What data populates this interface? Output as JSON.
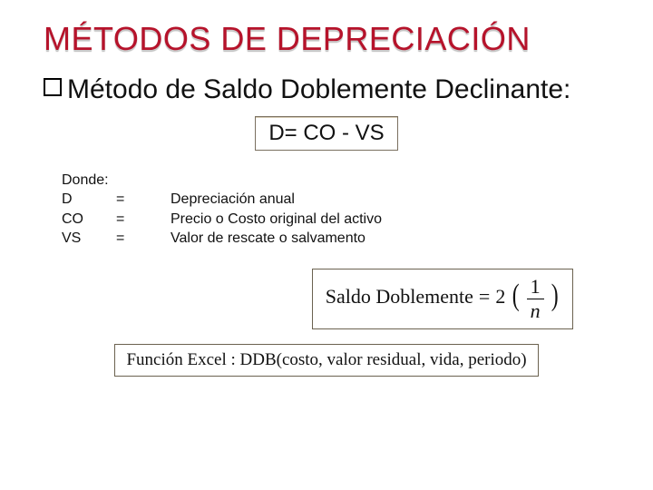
{
  "colors": {
    "title": "#b6132b",
    "text": "#111111",
    "box_border": "#7a7060",
    "background": "#ffffff"
  },
  "typography": {
    "title_fontsize": 36,
    "subtitle_fontsize": 30,
    "formula_fontsize": 24,
    "legend_fontsize": 16,
    "equation_fontsize": 22,
    "excel_fontsize": 19,
    "body_font": "Arial",
    "serif_font": "Times New Roman"
  },
  "title": "MÉTODOS DE DEPRECIACIÓN",
  "subtitle": "Método de Saldo Doblemente Declinante:",
  "formula": "D= CO  -  VS",
  "legend": {
    "header": "Donde:",
    "rows": [
      {
        "sym": "D",
        "eq": "=",
        "def": "Depreciación anual"
      },
      {
        "sym": "CO",
        "eq": "=",
        "def": "Precio o Costo original del activo"
      },
      {
        "sym": "VS",
        "eq": "=",
        "def": "Valor de rescate o salvamento"
      }
    ]
  },
  "equation": {
    "lhs": "Saldo Doblemente",
    "eq": "=",
    "coef": "2",
    "frac_num": "1",
    "frac_den": "n"
  },
  "excel": "Función Excel : DDB(costo, valor residual, vida, periodo)"
}
